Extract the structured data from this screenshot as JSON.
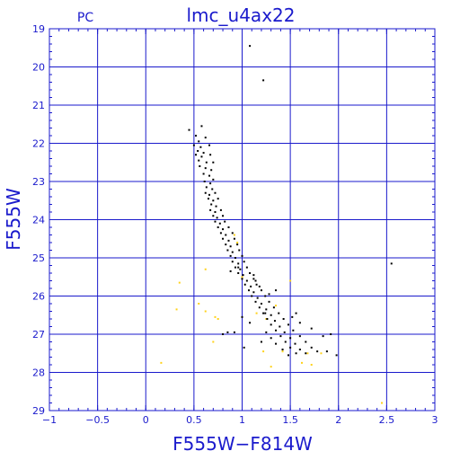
{
  "chart_data": {
    "type": "scatter",
    "title": "lmc_u4ax22",
    "subtitle": "PC",
    "xlabel": "F555W−F814W",
    "ylabel": "F555W",
    "xlim": [
      -1,
      3
    ],
    "ylim": [
      29,
      19
    ],
    "y_inverted": true,
    "grid": true,
    "xticks": [
      "−1",
      "−0.5",
      "0",
      "0.5",
      "1",
      "1.5",
      "2",
      "2.5",
      "3"
    ],
    "yticks": [
      "19",
      "20",
      "21",
      "22",
      "23",
      "24",
      "25",
      "26",
      "27",
      "28",
      "29"
    ],
    "colors": {
      "axis": "#1a1acc",
      "grid": "#1a1acc",
      "primary": "#000000",
      "secondary": "#ffd21a"
    },
    "series": [
      {
        "color": "#000000",
        "points": [
          [
            1.08,
            19.45
          ],
          [
            1.22,
            20.35
          ],
          [
            0.45,
            21.65
          ],
          [
            0.58,
            21.55
          ],
          [
            0.52,
            21.8
          ],
          [
            0.55,
            21.95
          ],
          [
            0.62,
            21.85
          ],
          [
            0.5,
            22.05
          ],
          [
            0.57,
            22.1
          ],
          [
            0.66,
            22.05
          ],
          [
            0.54,
            22.2
          ],
          [
            0.6,
            22.25
          ],
          [
            0.52,
            22.3
          ],
          [
            0.58,
            22.35
          ],
          [
            0.67,
            22.3
          ],
          [
            0.55,
            22.45
          ],
          [
            0.63,
            22.5
          ],
          [
            0.7,
            22.5
          ],
          [
            0.56,
            22.6
          ],
          [
            0.62,
            22.65
          ],
          [
            0.68,
            22.7
          ],
          [
            0.6,
            22.8
          ],
          [
            0.66,
            22.85
          ],
          [
            0.7,
            22.95
          ],
          [
            0.61,
            23.0
          ],
          [
            0.67,
            23.05
          ],
          [
            0.63,
            23.15
          ],
          [
            0.69,
            23.2
          ],
          [
            0.62,
            23.3
          ],
          [
            0.66,
            23.35
          ],
          [
            0.72,
            23.3
          ],
          [
            0.65,
            23.45
          ],
          [
            0.7,
            23.5
          ],
          [
            0.75,
            23.45
          ],
          [
            0.68,
            23.6
          ],
          [
            0.73,
            23.65
          ],
          [
            0.67,
            23.75
          ],
          [
            0.72,
            23.8
          ],
          [
            0.78,
            23.75
          ],
          [
            0.7,
            23.9
          ],
          [
            0.74,
            23.95
          ],
          [
            0.8,
            23.9
          ],
          [
            0.72,
            24.05
          ],
          [
            0.77,
            24.1
          ],
          [
            0.82,
            24.05
          ],
          [
            0.75,
            24.2
          ],
          [
            0.8,
            24.25
          ],
          [
            0.86,
            24.2
          ],
          [
            0.78,
            24.35
          ],
          [
            0.83,
            24.4
          ],
          [
            0.9,
            24.35
          ],
          [
            0.8,
            24.5
          ],
          [
            0.86,
            24.55
          ],
          [
            0.92,
            24.5
          ],
          [
            0.83,
            24.65
          ],
          [
            0.88,
            24.7
          ],
          [
            0.95,
            24.65
          ],
          [
            0.85,
            24.8
          ],
          [
            0.9,
            24.85
          ],
          [
            0.97,
            24.8
          ],
          [
            0.88,
            24.95
          ],
          [
            0.93,
            25.0
          ],
          [
            1.0,
            24.95
          ],
          [
            0.9,
            25.1
          ],
          [
            0.96,
            25.15
          ],
          [
            1.02,
            25.1
          ],
          [
            0.93,
            25.25
          ],
          [
            0.98,
            25.3
          ],
          [
            1.05,
            25.25
          ],
          [
            0.96,
            25.4
          ],
          [
            1.01,
            25.45
          ],
          [
            1.08,
            25.4
          ],
          [
            1.0,
            25.55
          ],
          [
            1.05,
            25.6
          ],
          [
            1.12,
            25.55
          ],
          [
            1.03,
            25.7
          ],
          [
            1.09,
            25.75
          ],
          [
            1.15,
            25.7
          ],
          [
            1.07,
            25.85
          ],
          [
            1.12,
            25.9
          ],
          [
            1.2,
            25.85
          ],
          [
            1.1,
            26.0
          ],
          [
            1.16,
            26.05
          ],
          [
            1.24,
            26.0
          ],
          [
            1.14,
            26.15
          ],
          [
            1.2,
            26.2
          ],
          [
            1.28,
            26.15
          ],
          [
            1.18,
            26.3
          ],
          [
            1.25,
            26.35
          ],
          [
            1.33,
            26.3
          ],
          [
            1.22,
            26.45
          ],
          [
            1.3,
            26.5
          ],
          [
            1.38,
            26.45
          ],
          [
            1.26,
            26.6
          ],
          [
            1.34,
            26.65
          ],
          [
            1.43,
            26.6
          ],
          [
            1.3,
            26.75
          ],
          [
            1.39,
            26.8
          ],
          [
            1.48,
            26.75
          ],
          [
            1.35,
            26.9
          ],
          [
            1.44,
            26.95
          ],
          [
            1.53,
            26.9
          ],
          [
            1.4,
            27.05
          ],
          [
            1.5,
            27.1
          ],
          [
            1.6,
            27.05
          ],
          [
            1.45,
            27.2
          ],
          [
            1.55,
            27.25
          ],
          [
            1.66,
            27.2
          ],
          [
            1.5,
            27.35
          ],
          [
            1.6,
            27.4
          ],
          [
            1.72,
            27.35
          ],
          [
            1.56,
            27.5
          ],
          [
            1.66,
            27.5
          ],
          [
            1.78,
            27.45
          ],
          [
            1.3,
            27.1
          ],
          [
            1.35,
            27.25
          ],
          [
            1.25,
            26.95
          ],
          [
            1.2,
            27.2
          ],
          [
            1.42,
            27.4
          ],
          [
            1.48,
            27.55
          ],
          [
            1.52,
            26.55
          ],
          [
            1.56,
            26.45
          ],
          [
            1.6,
            26.7
          ],
          [
            1.72,
            26.85
          ],
          [
            1.84,
            27.05
          ],
          [
            1.92,
            27.0
          ],
          [
            1.98,
            27.55
          ],
          [
            1.88,
            27.45
          ],
          [
            1.28,
            25.95
          ],
          [
            1.35,
            25.85
          ],
          [
            1.18,
            25.75
          ],
          [
            1.24,
            26.45
          ],
          [
            1.0,
            26.55
          ],
          [
            1.08,
            26.7
          ],
          [
            0.92,
            26.95
          ],
          [
            0.85,
            26.95
          ],
          [
            0.8,
            27.0
          ],
          [
            1.02,
            27.35
          ],
          [
            2.55,
            25.15
          ],
          [
            0.96,
            25.25
          ],
          [
            0.88,
            25.35
          ],
          [
            1.12,
            25.45
          ],
          [
            1.14,
            25.6
          ]
        ]
      },
      {
        "color": "#ffd21a",
        "points": [
          [
            0.92,
            24.4
          ],
          [
            0.95,
            24.6
          ],
          [
            1.0,
            25.5
          ],
          [
            0.62,
            25.3
          ],
          [
            0.35,
            25.65
          ],
          [
            0.55,
            26.2
          ],
          [
            0.62,
            26.4
          ],
          [
            0.32,
            26.35
          ],
          [
            0.72,
            26.55
          ],
          [
            0.75,
            26.6
          ],
          [
            0.7,
            27.2
          ],
          [
            0.16,
            27.75
          ],
          [
            1.15,
            26.45
          ],
          [
            1.25,
            26.6
          ],
          [
            1.35,
            26.25
          ],
          [
            1.5,
            25.6
          ],
          [
            1.62,
            27.75
          ],
          [
            1.72,
            27.8
          ],
          [
            1.82,
            27.5
          ],
          [
            1.42,
            27.45
          ],
          [
            2.45,
            28.8
          ],
          [
            1.68,
            27.5
          ],
          [
            1.22,
            27.45
          ],
          [
            1.3,
            27.85
          ]
        ]
      }
    ]
  }
}
